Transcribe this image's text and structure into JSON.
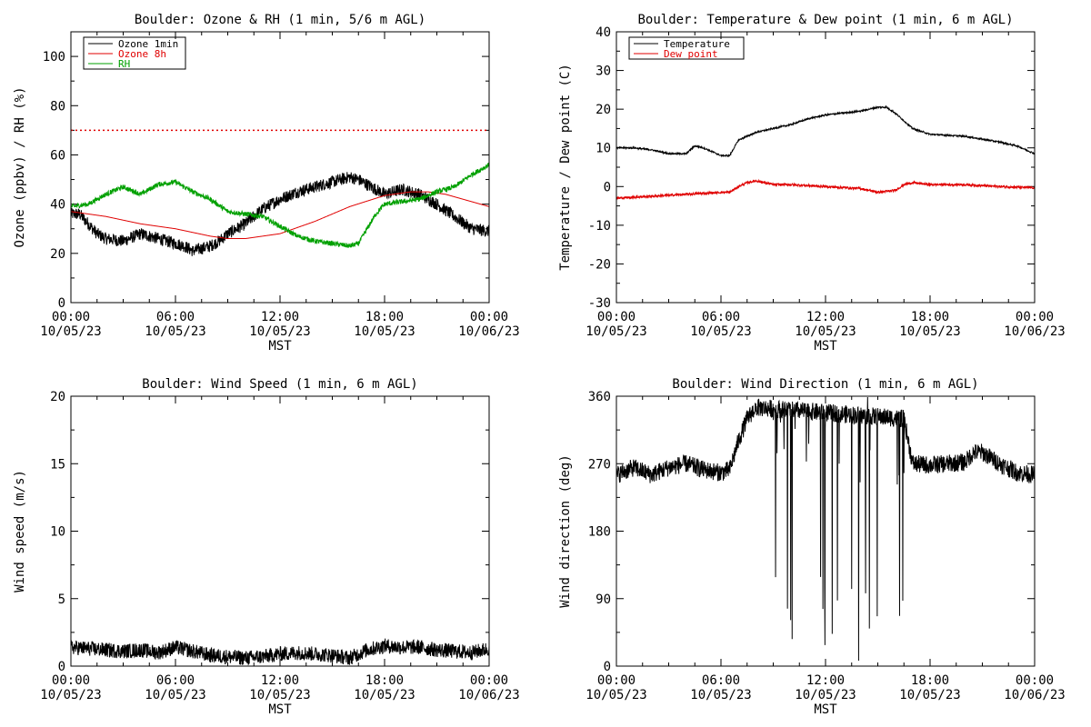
{
  "colors": {
    "axis": "#000000",
    "ozone_1min": "#000000",
    "ozone_8h": "#e00000",
    "rh": "#00a000",
    "temperature": "#000000",
    "dewpoint": "#e00000",
    "wind": "#000000",
    "ozone_standard_line": "#e00000"
  },
  "x_axis": {
    "ticks_hours": [
      0,
      6,
      12,
      18,
      24
    ],
    "tick_time_labels": [
      "00:00",
      "06:00",
      "12:00",
      "18:00",
      "00:00"
    ],
    "tick_date_labels": [
      "10/05/23",
      "10/05/23",
      "10/05/23",
      "10/05/23",
      "10/06/23"
    ],
    "xlabel": "MST"
  },
  "chart_data": [
    {
      "type": "line",
      "title": "Boulder: Ozone & RH (1 min, 5/6 m AGL)",
      "ylabel": "Ozone (ppbv) / RH (%)",
      "ylim": [
        0,
        110
      ],
      "yticks": [
        0,
        20,
        40,
        60,
        80,
        100
      ],
      "xlabel": "MST",
      "x_unit": "hours since 10/05/23 00:00 MST",
      "legend": {
        "placement": "top-left",
        "entries": [
          "Ozone 1min",
          "Ozone 8h",
          "RH"
        ]
      },
      "reference_line": {
        "y": 70,
        "style": "dotted",
        "color": "#e00000"
      },
      "series": [
        {
          "name": "Ozone 1min",
          "color": "#000000",
          "noise": 2.5,
          "x": [
            0,
            0.5,
            1,
            1.5,
            2,
            3,
            4,
            5,
            6,
            6.5,
            7,
            7.5,
            8,
            8.5,
            9,
            10,
            11,
            12,
            13,
            14,
            15,
            16,
            16.5,
            17,
            18,
            19,
            20,
            20.5,
            21,
            22,
            23,
            24
          ],
          "values": [
            36,
            36,
            32,
            28,
            26,
            25,
            28,
            26,
            24,
            23,
            21,
            22,
            23,
            25,
            28,
            32,
            38,
            42,
            45,
            47,
            49,
            51,
            50,
            48,
            44,
            46,
            44,
            42,
            40,
            35,
            30,
            29
          ]
        },
        {
          "name": "Ozone 8h",
          "color": "#e00000",
          "noise": 0,
          "x": [
            0,
            2,
            4,
            6,
            8,
            9,
            10,
            12,
            14,
            16,
            18,
            19.5,
            20.5,
            21.5,
            23,
            24
          ],
          "values": [
            37,
            35,
            32,
            30,
            27,
            26,
            26,
            28,
            33,
            39,
            43.5,
            45,
            45,
            44,
            41,
            39
          ]
        },
        {
          "name": "RH",
          "color": "#00a000",
          "noise": 1.0,
          "x": [
            0,
            1,
            2,
            3,
            4,
            5,
            6,
            7,
            8,
            9,
            10,
            11,
            12,
            13,
            14,
            15,
            16,
            16.5,
            17,
            17.5,
            18,
            19,
            20,
            21,
            22,
            23,
            23.5,
            24
          ],
          "values": [
            39,
            40,
            44,
            47,
            44,
            48,
            49,
            45,
            42,
            37,
            36,
            35,
            31,
            27,
            25,
            24,
            23,
            24,
            30,
            36,
            40,
            41,
            42,
            45,
            47,
            52,
            54,
            56
          ]
        }
      ]
    },
    {
      "type": "line",
      "title": "Boulder: Temperature & Dew point (1 min, 6 m AGL)",
      "ylabel": "Temperature / Dew point (C)",
      "ylim": [
        -30,
        40
      ],
      "yticks": [
        -30,
        -20,
        -10,
        0,
        10,
        20,
        30,
        40
      ],
      "xlabel": "MST",
      "x_unit": "hours since 10/05/23 00:00 MST",
      "legend": {
        "placement": "top-left",
        "entries": [
          "Temperature",
          "Dew point"
        ]
      },
      "series": [
        {
          "name": "Temperature",
          "color": "#000000",
          "noise": 0.2,
          "x": [
            0,
            1,
            2,
            3,
            4,
            4.5,
            5,
            5.5,
            6,
            6.5,
            7,
            8,
            9,
            10,
            11,
            12,
            13,
            14,
            15,
            15.5,
            16,
            16.5,
            17,
            18,
            20,
            22,
            23,
            24
          ],
          "values": [
            10,
            10,
            9.5,
            8.5,
            8.5,
            10.5,
            10,
            9,
            8,
            8,
            12,
            14,
            15,
            16,
            17.5,
            18.5,
            19,
            19.5,
            20.5,
            20.5,
            19,
            17,
            15,
            13.5,
            13,
            11.5,
            10.5,
            8.5
          ]
        },
        {
          "name": "Dew point",
          "color": "#e00000",
          "noise": 0.3,
          "x": [
            0,
            2,
            4,
            6,
            6.5,
            7,
            7.5,
            8,
            9,
            10,
            12,
            14,
            15,
            16,
            16.5,
            17,
            18,
            20,
            22,
            24
          ],
          "values": [
            -3,
            -2.5,
            -2,
            -1.5,
            -1.5,
            0,
            1,
            1.5,
            0.5,
            0.5,
            0,
            -0.5,
            -1.5,
            -1,
            0.5,
            1,
            0.5,
            0.5,
            0,
            -0.3
          ]
        }
      ]
    },
    {
      "type": "line",
      "title": "Boulder: Wind Speed (1 min, 6 m AGL)",
      "ylabel": "Wind speed (m/s)",
      "ylim": [
        0,
        20
      ],
      "yticks": [
        0,
        5,
        10,
        15,
        20
      ],
      "xlabel": "MST",
      "x_unit": "hours since 10/05/23 00:00 MST",
      "series": [
        {
          "name": "",
          "color": "#000000",
          "noise": 0.55,
          "x": [
            0,
            1,
            2,
            3,
            4,
            5,
            6,
            7,
            8,
            9,
            10,
            11,
            12,
            13,
            14,
            15,
            16,
            17,
            18,
            19,
            20,
            21,
            22,
            23,
            24
          ],
          "values": [
            1.4,
            1.3,
            1.2,
            1.1,
            1.2,
            1.0,
            1.4,
            1.1,
            0.8,
            0.7,
            0.6,
            0.7,
            0.9,
            1.0,
            0.9,
            0.8,
            0.6,
            1.2,
            1.5,
            1.4,
            1.4,
            1.2,
            1.1,
            1.0,
            1.3
          ]
        }
      ]
    },
    {
      "type": "line",
      "title": "Boulder: Wind Direction (1 min, 6 m AGL)",
      "ylabel": "Wind direction (deg)",
      "ylim": [
        0,
        360
      ],
      "yticks": [
        0,
        90,
        180,
        270,
        360
      ],
      "xlabel": "MST",
      "x_unit": "hours since 10/05/23 00:00 MST",
      "series": [
        {
          "name": "",
          "color": "#000000",
          "noise": 12,
          "x": [
            0,
            1,
            2,
            3,
            4,
            5,
            6,
            6.5,
            7,
            7.5,
            8,
            16.5,
            17,
            18,
            19,
            20,
            20.5,
            21,
            22,
            23,
            24
          ],
          "values": [
            255,
            265,
            255,
            265,
            270,
            262,
            258,
            262,
            300,
            330,
            345,
            330,
            270,
            268,
            270,
            272,
            285,
            285,
            270,
            258,
            255
          ]
        }
      ],
      "variable_period_hours": [
        8.0,
        16.5
      ]
    }
  ]
}
